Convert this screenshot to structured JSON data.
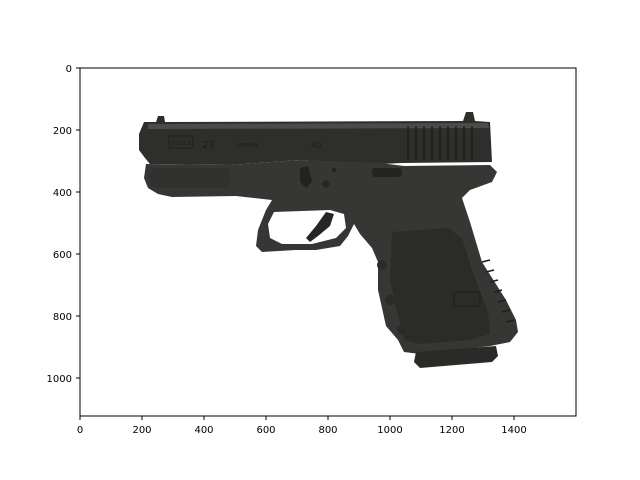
{
  "chart_data": {
    "type": "image",
    "title": "",
    "xlabel": "",
    "ylabel": "",
    "xlim": [
      0,
      1600
    ],
    "ylim": [
      1120,
      0
    ],
    "x_ticks": [
      "0",
      "200",
      "400",
      "600",
      "800",
      "1000",
      "1200",
      "1400"
    ],
    "y_ticks": [
      "0",
      "200",
      "400",
      "600",
      "800",
      "1000"
    ],
    "grid": false
  },
  "image": {
    "subject": "pistol-icon",
    "engravings": [
      "GLOCK",
      "23",
      "AUSTRIA",
      "40"
    ]
  },
  "colors": {
    "frame": "#3a3a38",
    "slide": "#2d2d2b",
    "slide_highlight": "#4a4a47",
    "background": "#ffffff",
    "axes": "#000000"
  }
}
